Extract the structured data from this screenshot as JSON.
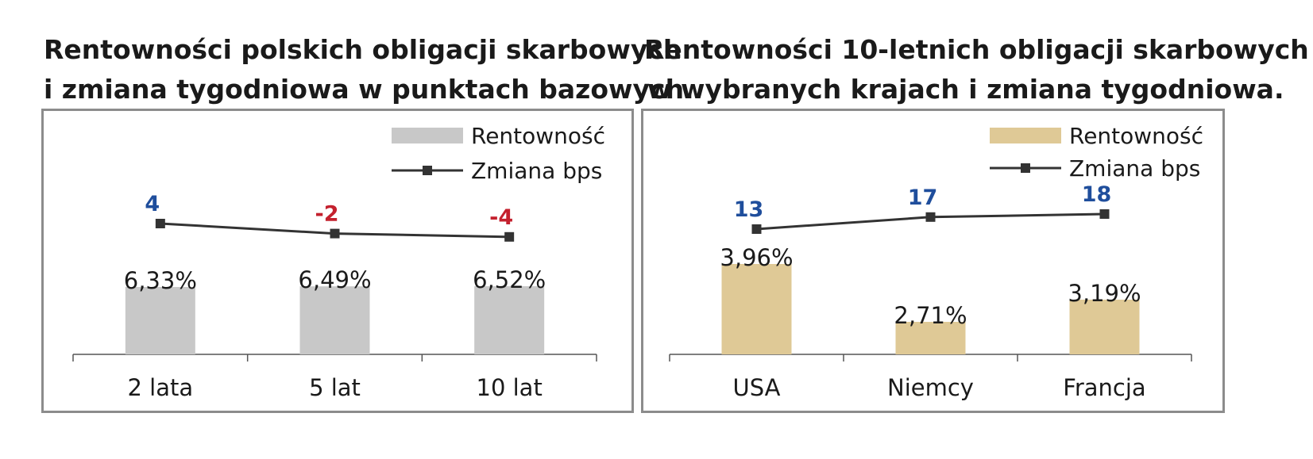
{
  "colors": {
    "bar_left": "#c8c8c8",
    "bar_right": "#dfc996",
    "line": "#333333",
    "positive": "#1f4e9c",
    "negative": "#c4212e",
    "text": "#1a1a1a"
  },
  "chart_data": [
    {
      "type": "bar",
      "title_lines": [
        "Rentowności polskich obligacji skarbowych",
        "i zmiana tygodniowa w punktach bazowych."
      ],
      "categories": [
        "2 lata",
        "5 lat",
        "10 lat"
      ],
      "series": [
        {
          "name": "Rentowność",
          "kind": "bar",
          "values": [
            6.33,
            6.49,
            6.52
          ],
          "labels": [
            "6,33%",
            "6,49%",
            "6,52%"
          ]
        },
        {
          "name": "Zmiana bps",
          "kind": "line",
          "values": [
            4,
            -2,
            -4
          ],
          "labels": [
            "4",
            "-2",
            "-4"
          ]
        }
      ],
      "legend": "top-right"
    },
    {
      "type": "bar",
      "title_lines": [
        "Rentowności 10-letnich obligacji skarbowych",
        "w wybranych krajach i zmiana tygodniowa."
      ],
      "categories": [
        "USA",
        "Niemcy",
        "Francja"
      ],
      "series": [
        {
          "name": "Rentowność",
          "kind": "bar",
          "values": [
            3.96,
            2.71,
            3.19
          ],
          "labels": [
            "3,96%",
            "2,71%",
            "3,19%"
          ]
        },
        {
          "name": "Zmiana bps",
          "kind": "line",
          "values": [
            13,
            17,
            18
          ],
          "labels": [
            "13",
            "17",
            "18"
          ]
        }
      ],
      "legend": "top-right"
    }
  ]
}
